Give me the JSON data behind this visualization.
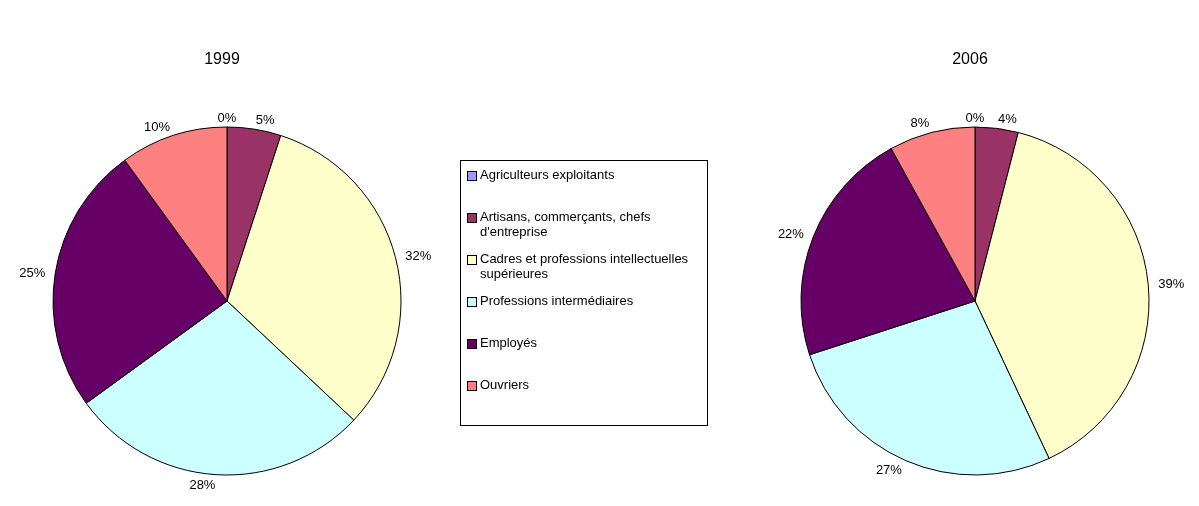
{
  "chart_data": {
    "type": "pie",
    "categories": [
      "Agriculteurs exploitants",
      "Artisans, commerçants, chefs d'entreprise",
      "Cadres et professions intellectuelles supérieures",
      "Professions intermédiaires",
      "Employés",
      "Ouvriers"
    ],
    "colors": [
      "#9999ff",
      "#993366",
      "#ffffcc",
      "#ccffff",
      "#660066",
      "#ff8080"
    ],
    "legend": "right",
    "series": [
      {
        "name": "1999",
        "values": [
          0,
          5,
          32,
          28,
          25,
          10
        ],
        "value_labels": [
          "0%",
          "5%",
          "32%",
          "28%",
          "25%",
          "10%"
        ]
      },
      {
        "name": "2006",
        "values": [
          0,
          4,
          39,
          27,
          22,
          8
        ],
        "value_labels": [
          "0%",
          "4%",
          "39%",
          "27%",
          "22%",
          "8%"
        ]
      }
    ]
  }
}
